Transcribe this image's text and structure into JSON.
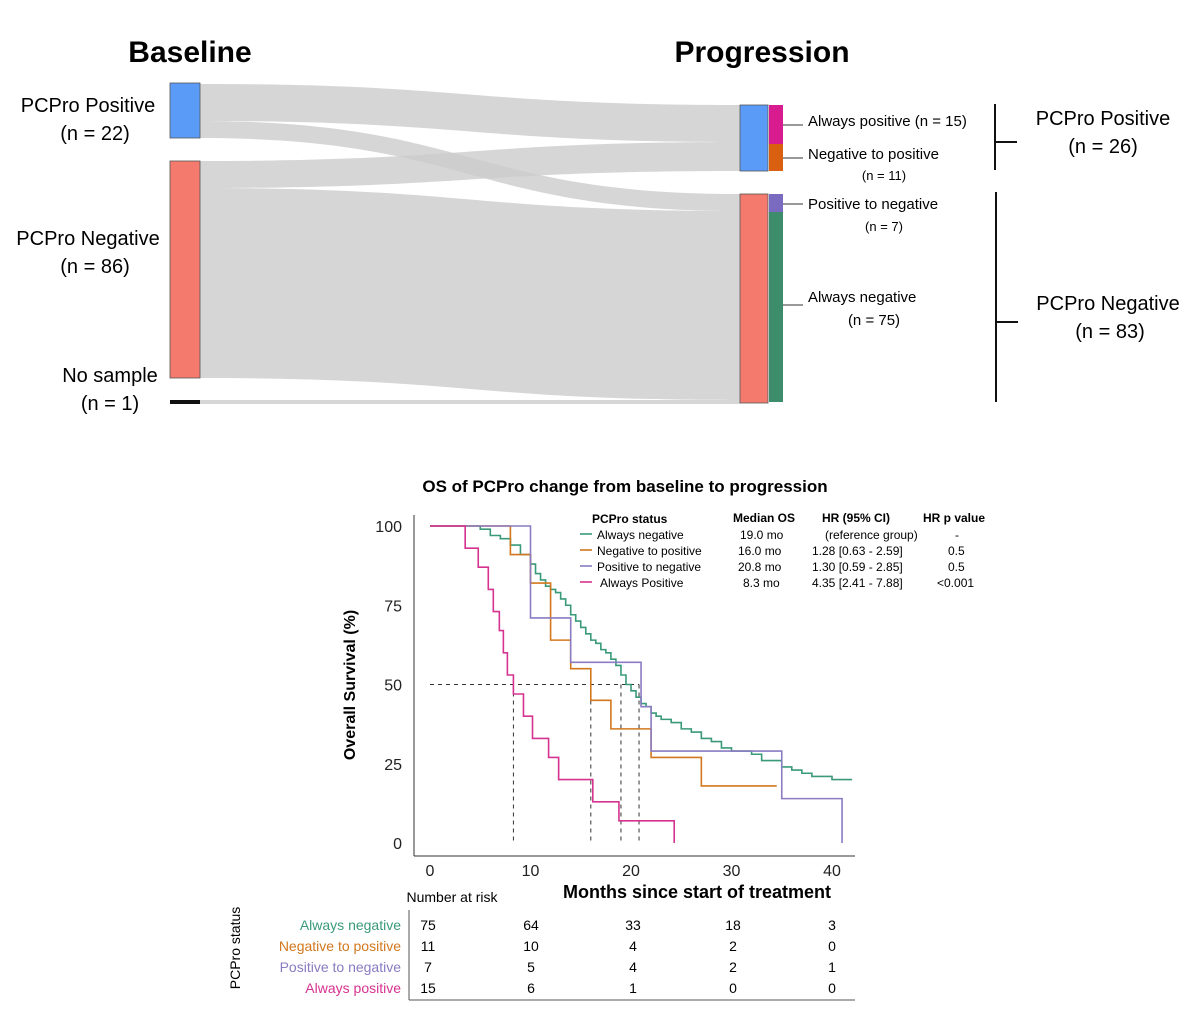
{
  "colors": {
    "positive": "#5b9bf8",
    "negative": "#f47a6e",
    "flow": "#cccccc",
    "always_negative": "#3a9a78",
    "negative_to_positive": "#d2771d",
    "positive_to_negative": "#8a7bc2",
    "always_positive": "#d6328f",
    "np_bar": "#d96010",
    "ap_bar": "#d81b8e",
    "pn_bar": "#7b6bc0",
    "an_bar": "#3d8c6c"
  },
  "sankey": {
    "baseline_title": "Baseline",
    "progression_title": "Progression",
    "nodes_left": [
      {
        "name": "PCPro Positive",
        "n": "(n = 22)"
      },
      {
        "name": "PCPro Negative",
        "n": "(n = 86)"
      },
      {
        "name": "No sample",
        "n": "(n = 1)"
      }
    ],
    "subgroups": [
      {
        "name": "Always positive (n = 15)",
        "n": ""
      },
      {
        "name": "Negative to positive",
        "n": "(n = 11)"
      },
      {
        "name": "Positive to negative",
        "n": "(n = 7)"
      },
      {
        "name": "Always negative",
        "n": "(n = 75)"
      }
    ],
    "groups_right": [
      {
        "name": "PCPro Positive",
        "n": "(n = 26)"
      },
      {
        "name": "PCPro Negative",
        "n": "(n = 83)"
      }
    ]
  },
  "chart_data": {
    "type": "line",
    "title": "OS of PCPro change from baseline to progression",
    "xlabel": "Months since start of treatment",
    "ylabel": "Overall Survival (%)",
    "xlim": [
      0,
      42
    ],
    "ylim": [
      0,
      100
    ],
    "x_ticks": [
      0,
      10,
      20,
      30,
      40
    ],
    "y_ticks": [
      0,
      25,
      50,
      75,
      100
    ],
    "legend": {
      "head_status": "PCPro status",
      "head_median": "Median OS",
      "head_hr": "HR (95% CI)",
      "head_p": "HR p value",
      "rows": [
        {
          "name": "Always negative",
          "median": "19.0 mo",
          "hr": "(reference group)",
          "p": "-"
        },
        {
          "name": "Negative to positive",
          "median": "16.0 mo",
          "hr": "1.28 [0.63 - 2.59]",
          "p": "0.5"
        },
        {
          "name": "Positive to negative",
          "median": "20.8 mo",
          "hr": "1.30 [0.59 - 2.85]",
          "p": "0.5"
        },
        {
          "name": "Always Positive",
          "median": "8.3 mo",
          "hr": "4.35 [2.41 - 7.88]",
          "p": "<0.001"
        }
      ]
    },
    "medians": [
      8.3,
      16.0,
      19.0,
      20.8
    ],
    "series": [
      {
        "name": "Always negative",
        "x": [
          0,
          5,
          6,
          7,
          8,
          9,
          10,
          10.5,
          11,
          11.5,
          12,
          12.5,
          13,
          13.5,
          14,
          14.5,
          15,
          15.5,
          16,
          16.5,
          17,
          17.5,
          18,
          18.5,
          19,
          19.5,
          20,
          20.5,
          21,
          21.5,
          22,
          22.5,
          23,
          24,
          25,
          26,
          27,
          28,
          29,
          30,
          31,
          32,
          33,
          34,
          35,
          36,
          37,
          38,
          39,
          40,
          41,
          42
        ],
        "y": [
          100,
          99,
          97,
          96,
          94,
          91,
          88,
          85,
          83,
          81,
          80,
          79,
          77,
          75,
          72,
          70,
          68,
          66,
          64,
          63,
          61,
          60,
          58,
          56,
          53,
          50,
          48,
          46,
          44,
          43,
          41,
          40,
          39,
          38,
          36,
          35,
          33,
          32,
          30,
          29,
          29,
          28,
          26,
          26,
          24,
          23,
          22,
          21,
          21,
          20,
          20,
          20
        ]
      },
      {
        "name": "Negative to positive",
        "x": [
          0,
          8,
          10,
          12,
          14,
          16,
          18,
          19,
          22,
          27,
          31,
          34.5
        ],
        "y": [
          100,
          91,
          82,
          64,
          55,
          45,
          36,
          36,
          27,
          18,
          18,
          18
        ]
      },
      {
        "name": "Positive to negative",
        "x": [
          0,
          10,
          13,
          14,
          18,
          21,
          22,
          33,
          35,
          40,
          41
        ],
        "y": [
          100,
          71,
          71,
          57,
          57,
          43,
          29,
          29,
          14,
          14,
          0
        ]
      },
      {
        "name": "Always positive",
        "x": [
          0,
          3.5,
          4.8,
          5.8,
          6.3,
          6.9,
          7.3,
          7.7,
          8.3,
          9.3,
          10.2,
          10.8,
          11.8,
          12.8,
          13.8,
          16.2,
          18.8,
          24.3
        ],
        "y": [
          100,
          93,
          87,
          80,
          73,
          67,
          60,
          53,
          47,
          40,
          33,
          33,
          27,
          20,
          20,
          13,
          7,
          0
        ]
      }
    ],
    "risk_table": {
      "title": "Number at risk",
      "ylabel": "PCPro status",
      "rows": [
        {
          "name": "Always negative",
          "values": [
            "75",
            "64",
            "33",
            "18",
            "3"
          ]
        },
        {
          "name": "Negative to positive",
          "values": [
            "11",
            "10",
            "4",
            "2",
            "0"
          ]
        },
        {
          "name": "Positive to negative",
          "values": [
            "7",
            "5",
            "4",
            "2",
            "1"
          ]
        },
        {
          "name": "Always positive",
          "values": [
            "15",
            "6",
            "1",
            "0",
            "0"
          ]
        }
      ]
    }
  }
}
